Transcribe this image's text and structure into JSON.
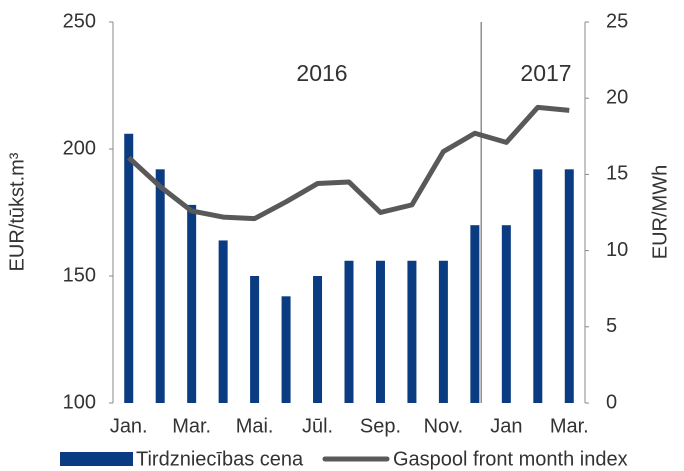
{
  "chart_data": {
    "type": "bar_line",
    "categories": [
      "Jan.",
      null,
      "Mar.",
      null,
      "Mai.",
      null,
      "Jūl.",
      null,
      "Sep.",
      null,
      "Nov.",
      null,
      "Jan",
      null,
      "Mar."
    ],
    "series": [
      {
        "name": "Tirdzniecības cena",
        "type": "bar",
        "color": "#0b3c82",
        "axis": "y",
        "values": [
          206,
          192,
          178,
          164,
          150,
          142,
          150,
          156,
          156,
          156,
          156,
          170,
          170,
          192,
          192
        ]
      },
      {
        "name": "Gaspool front month index",
        "type": "line",
        "color": "#595959",
        "axis": "y2",
        "values": [
          16.1,
          14.2,
          12.6,
          12.2,
          12.1,
          13.2,
          14.4,
          14.5,
          12.5,
          13.0,
          16.5,
          17.7,
          17.1,
          19.4,
          19.2
        ]
      }
    ],
    "ylabel": "EUR/tūkst.m³",
    "y2label": "EUR/MWh",
    "ylim": [
      100,
      250
    ],
    "yticks": [
      100,
      150,
      200,
      250
    ],
    "y2lim": [
      0,
      25
    ],
    "y2ticks": [
      0,
      5,
      10,
      15,
      20,
      25
    ],
    "annotations": [
      "2016",
      "2017"
    ],
    "grid": false,
    "legend": "bottom"
  }
}
